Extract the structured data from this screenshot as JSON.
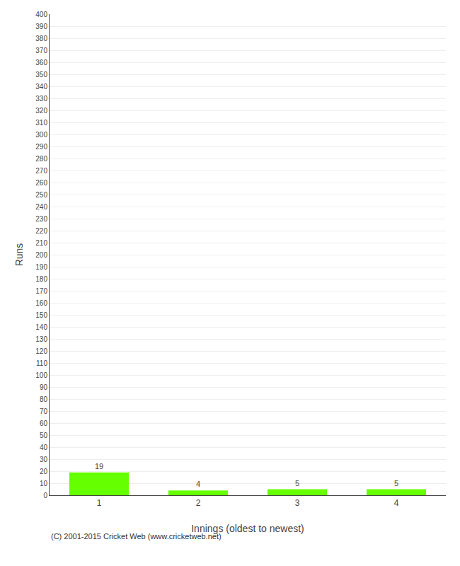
{
  "chart_data": {
    "type": "bar",
    "categories": [
      1,
      2,
      3,
      4
    ],
    "values": [
      19,
      4,
      5,
      5
    ],
    "color": "#66ff00",
    "xlabel": "Innings (oldest to newest)",
    "ylabel": "Runs",
    "ylim": [
      0,
      400
    ],
    "yticks": [
      0,
      10,
      20,
      30,
      40,
      50,
      60,
      70,
      80,
      90,
      100,
      110,
      120,
      130,
      140,
      150,
      160,
      170,
      180,
      190,
      200,
      210,
      220,
      230,
      240,
      250,
      260,
      270,
      280,
      290,
      300,
      310,
      320,
      330,
      340,
      350,
      360,
      370,
      380,
      390,
      400
    ],
    "grid": true,
    "data_labels": true,
    "annotations": [
      "(C) 2001-2015 Cricket Web (www.cricketweb.net)"
    ]
  }
}
